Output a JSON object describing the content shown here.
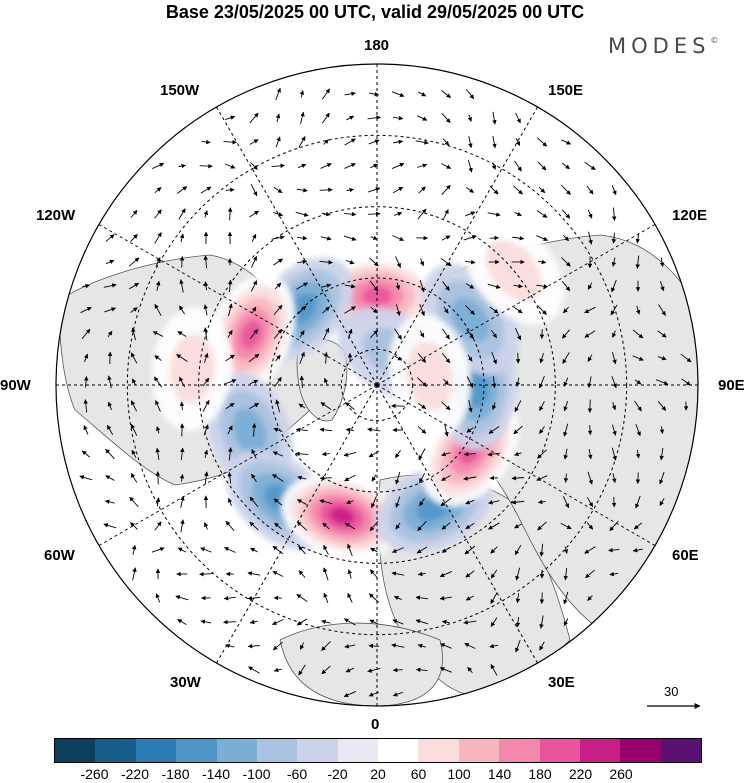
{
  "title": "Base 23/05/2025 00 UTC, valid 29/05/2025 00 UTC",
  "logo": "MODES",
  "logo_mark": "©",
  "longitude_labels": {
    "top": "180",
    "bottom": "0",
    "left": "90W",
    "right": "90E",
    "upper_left_1": "150W",
    "upper_left_2": "120W",
    "upper_right_1": "150E",
    "upper_right_2": "120E",
    "lower_left_1": "60W",
    "lower_left_2": "30W",
    "lower_right_1": "60E",
    "lower_right_2": "30E"
  },
  "vector_reference": "30",
  "colorbar": {
    "colors": [
      "#0d3e5e",
      "#175e8a",
      "#2b7ab3",
      "#4e97c8",
      "#7aaed5",
      "#a9c2e0",
      "#ccd2ea",
      "#e9e8f3",
      "#ffffff",
      "#fbdcdc",
      "#f7b6c0",
      "#f487ac",
      "#e8559c",
      "#c81f86",
      "#99006f",
      "#5a1171"
    ],
    "tick_labels": [
      "-260",
      "-220",
      "-180",
      "-140",
      "-100",
      "-60",
      "-20",
      "20",
      "60",
      "100",
      "140",
      "180",
      "220",
      "260"
    ]
  },
  "anomaly_centres": [
    {
      "lon_deg": 180,
      "lat_deg": 65,
      "value": 200
    },
    {
      "lon_deg": -135,
      "lat_deg": 60,
      "value": -160
    },
    {
      "lon_deg": -112,
      "lat_deg": 52,
      "value": 200
    },
    {
      "lon_deg": -70,
      "lat_deg": 52,
      "value": -100
    },
    {
      "lon_deg": -40,
      "lat_deg": 48,
      "value": -160
    },
    {
      "lon_deg": -15,
      "lat_deg": 52,
      "value": 220
    },
    {
      "lon_deg": 25,
      "lat_deg": 52,
      "value": -150
    },
    {
      "lon_deg": 55,
      "lat_deg": 58,
      "value": 200
    },
    {
      "lon_deg": 88,
      "lat_deg": 62,
      "value": -160
    },
    {
      "lon_deg": 125,
      "lat_deg": 58,
      "value": -100
    },
    {
      "lon_deg": 150,
      "lat_deg": 80,
      "value": -60
    },
    {
      "lon_deg": 100,
      "lat_deg": 75,
      "value": 80
    },
    {
      "lon_deg": -95,
      "lat_deg": 38,
      "value": 60
    },
    {
      "lon_deg": 130,
      "lat_deg": 40,
      "value": 60
    }
  ]
}
